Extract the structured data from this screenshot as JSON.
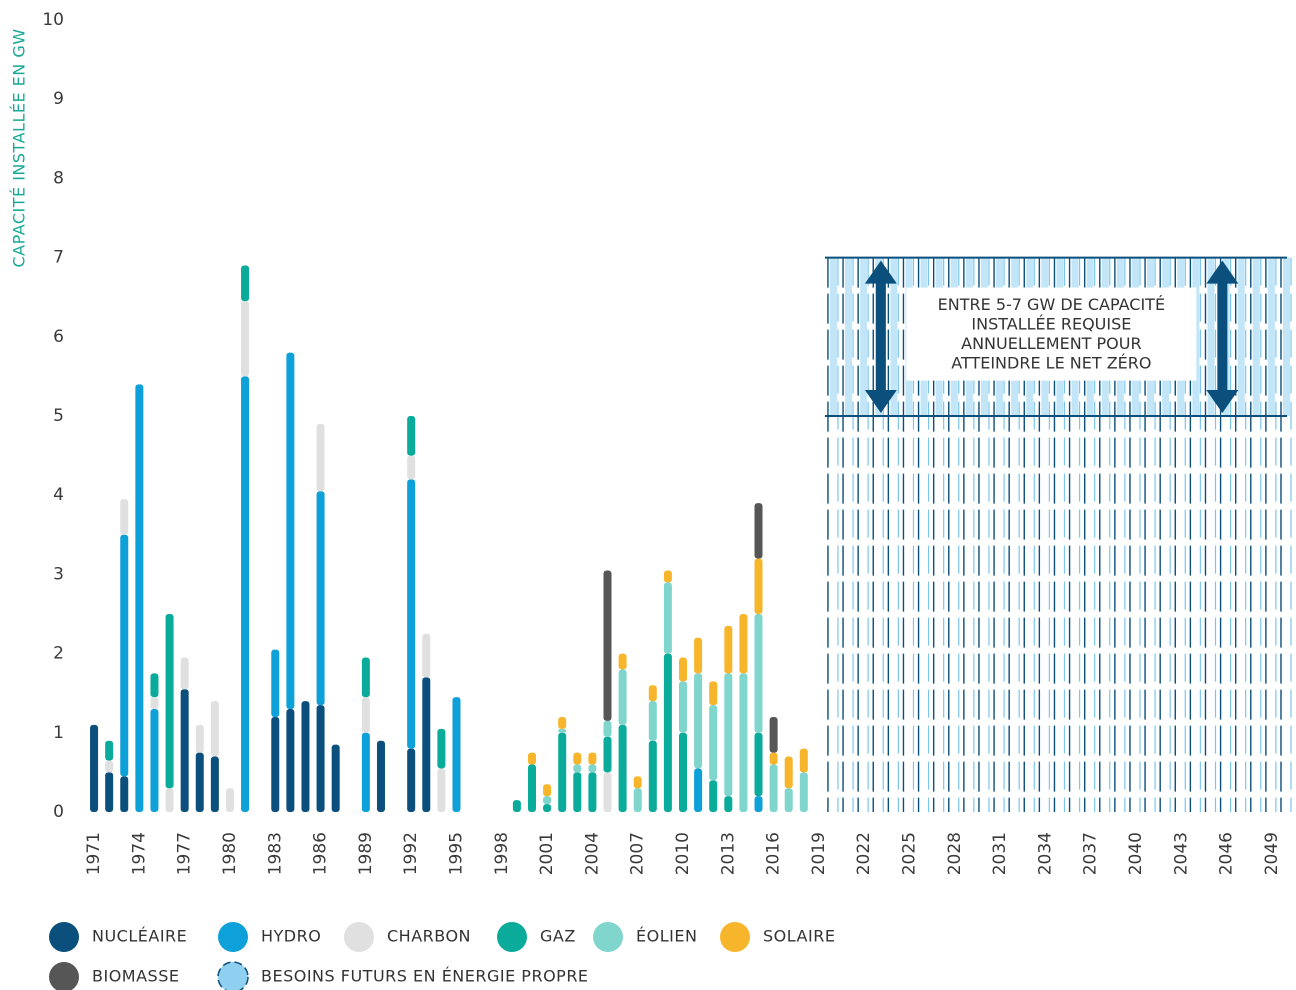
{
  "chart_data": {
    "type": "bar",
    "stacked": true,
    "y_label": "CAPACITÉ INSTALLÉE EN GW",
    "x": [
      1971,
      1972,
      1973,
      1974,
      1975,
      1976,
      1977,
      1978,
      1979,
      1980,
      1981,
      1982,
      1983,
      1984,
      1985,
      1986,
      1987,
      1988,
      1989,
      1990,
      1991,
      1992,
      1993,
      1994,
      1995,
      1996,
      1997,
      1998,
      1999,
      2000,
      2001,
      2002,
      2003,
      2004,
      2005,
      2006,
      2007,
      2008,
      2009,
      2010,
      2011,
      2012,
      2013,
      2014,
      2015,
      2016,
      2017,
      2018
    ],
    "series": [
      {
        "name": "NUCLÉAIRE",
        "color": "#0b4f7c",
        "values": [
          1.1,
          0.5,
          0.45,
          null,
          null,
          null,
          1.55,
          0.75,
          0.7,
          null,
          null,
          null,
          1.2,
          1.3,
          1.4,
          1.35,
          0.85,
          null,
          null,
          0.9,
          null,
          0.8,
          1.7,
          null,
          null,
          null,
          null,
          null,
          null,
          null,
          null,
          null,
          null,
          null,
          null,
          null,
          null,
          null,
          null,
          null,
          null,
          null,
          null,
          null,
          null,
          null,
          null,
          null
        ]
      },
      {
        "name": "HYDRO",
        "color": "#0ea0d8",
        "values": [
          null,
          null,
          3.05,
          5.4,
          1.3,
          null,
          null,
          null,
          null,
          null,
          5.5,
          null,
          0.85,
          4.5,
          null,
          2.7,
          null,
          null,
          1.0,
          null,
          null,
          3.4,
          null,
          null,
          1.45,
          null,
          null,
          null,
          null,
          null,
          null,
          null,
          null,
          null,
          null,
          null,
          null,
          null,
          null,
          null,
          0.55,
          null,
          null,
          null,
          0.2,
          null,
          null,
          null
        ]
      },
      {
        "name": "CHARBON",
        "color": "#e0e0e0",
        "values": [
          null,
          0.15,
          0.45,
          null,
          0.15,
          0.3,
          0.4,
          0.35,
          0.7,
          0.3,
          0.95,
          null,
          null,
          null,
          null,
          0.85,
          null,
          null,
          0.45,
          null,
          null,
          0.3,
          0.55,
          0.55,
          null,
          null,
          null,
          null,
          null,
          null,
          null,
          null,
          null,
          null,
          0.5,
          null,
          null,
          null,
          null,
          null,
          null,
          null,
          null,
          null,
          null,
          null,
          null,
          null
        ]
      },
      {
        "name": "GAZ",
        "color": "#0aab9a",
        "values": [
          null,
          0.25,
          null,
          null,
          0.3,
          2.2,
          null,
          null,
          null,
          null,
          0.45,
          null,
          null,
          null,
          null,
          null,
          null,
          null,
          0.5,
          null,
          null,
          0.5,
          null,
          0.5,
          null,
          null,
          null,
          null,
          0.15,
          0.6,
          0.1,
          1.0,
          0.5,
          0.5,
          0.45,
          1.1,
          null,
          0.9,
          2.0,
          1.0,
          null,
          0.4,
          0.2,
          null,
          0.8,
          null,
          null,
          null
        ]
      },
      {
        "name": "ÉOLIEN",
        "color": "#80d5cc",
        "values": [
          null,
          null,
          null,
          null,
          null,
          null,
          null,
          null,
          null,
          null,
          null,
          null,
          null,
          null,
          null,
          null,
          null,
          null,
          null,
          null,
          null,
          null,
          null,
          null,
          null,
          null,
          null,
          null,
          null,
          null,
          0.1,
          0.05,
          0.1,
          0.1,
          0.2,
          0.7,
          0.3,
          0.5,
          0.9,
          0.65,
          1.2,
          0.95,
          1.55,
          1.75,
          1.5,
          0.6,
          0.3,
          0.5
        ]
      },
      {
        "name": "SOLAIRE",
        "color": "#f7b52b",
        "values": [
          null,
          null,
          null,
          null,
          null,
          null,
          null,
          null,
          null,
          null,
          null,
          null,
          null,
          null,
          null,
          null,
          null,
          null,
          null,
          null,
          null,
          null,
          null,
          null,
          null,
          null,
          null,
          null,
          null,
          0.15,
          0.15,
          0.15,
          0.15,
          0.15,
          null,
          0.2,
          0.15,
          0.2,
          0.15,
          0.3,
          0.45,
          0.3,
          0.6,
          0.75,
          0.7,
          0.15,
          0.4,
          0.3
        ]
      },
      {
        "name": "BIOMASSE",
        "color": "#565656",
        "values": [
          null,
          null,
          null,
          null,
          null,
          null,
          null,
          null,
          null,
          null,
          null,
          null,
          null,
          null,
          null,
          null,
          null,
          null,
          null,
          null,
          null,
          null,
          null,
          null,
          null,
          null,
          null,
          null,
          null,
          null,
          null,
          null,
          null,
          null,
          1.9,
          null,
          null,
          null,
          null,
          null,
          null,
          null,
          null,
          null,
          0.7,
          0.45,
          null,
          null
        ]
      }
    ],
    "target": {
      "name": "BESOINS FUTURS EN ÉNERGIE PROPRE",
      "color": "#8fd0f0",
      "line_color": "#0b4f7c",
      "x": [
        2019,
        2050
      ],
      "values": [
        5,
        7
      ],
      "annotation": [
        "ENTRE 5-7 GW DE CAPACITÉ",
        "INSTALLÉE REQUISE",
        "ANNUELLEMENT POUR",
        "ATTEINDRE LE NET ZÉRO"
      ]
    },
    "xlim": [
      1969.5,
      2050.5
    ],
    "xticks": [
      1971,
      1974,
      1977,
      1980,
      1983,
      1986,
      1989,
      1992,
      1995,
      1998,
      2001,
      2004,
      2007,
      2010,
      2013,
      2016,
      2019,
      2022,
      2025,
      2028,
      2031,
      2034,
      2037,
      2040,
      2043,
      2046,
      2049
    ],
    "ylim": [
      0,
      10
    ],
    "yticks": [
      0,
      1,
      2,
      3,
      4,
      5,
      6,
      7,
      8,
      9,
      10
    ],
    "grid": false
  }
}
